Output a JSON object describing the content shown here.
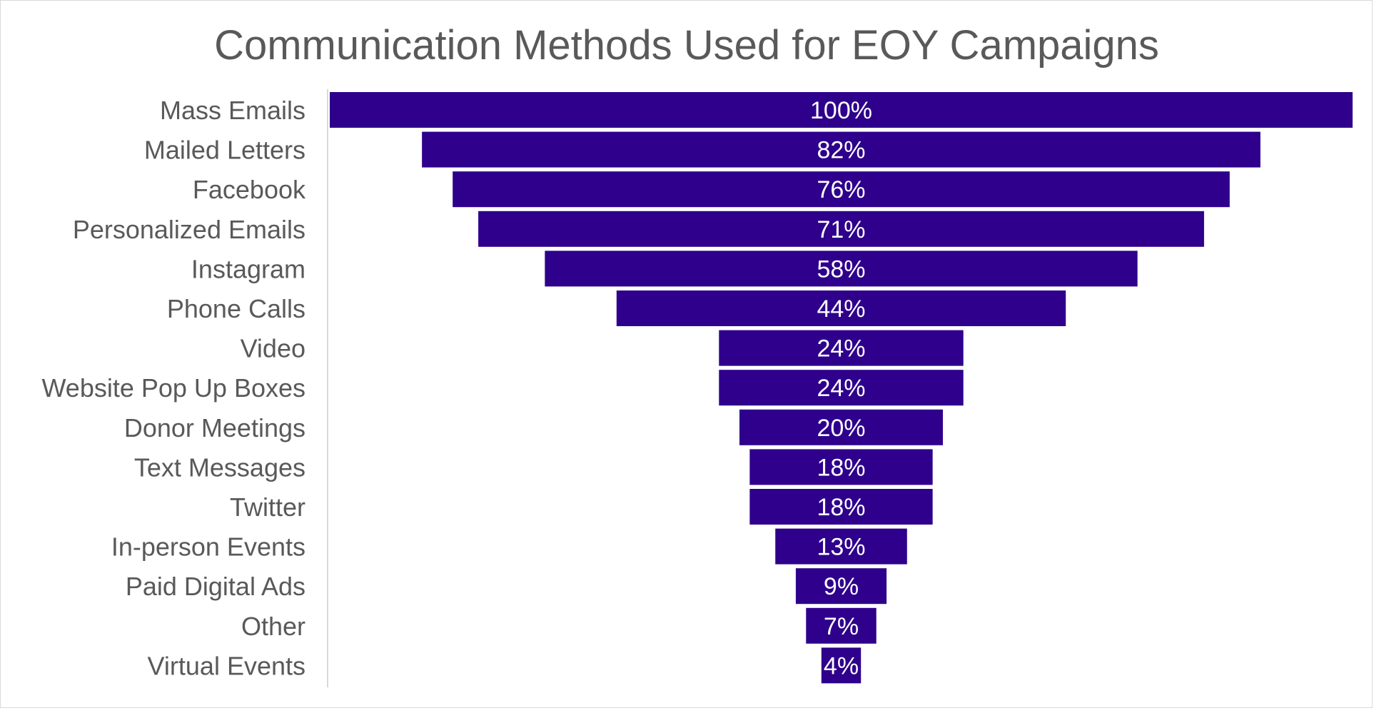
{
  "chart_data": {
    "type": "bar",
    "orientation": "horizontal-funnel",
    "title": "Communication Methods Used for EOY Campaigns",
    "xlabel": "",
    "ylabel": "",
    "xlim": [
      0,
      100
    ],
    "grid": false,
    "legend": "none",
    "categories": [
      "Mass Emails",
      "Mailed Letters",
      "Facebook",
      "Personalized Emails",
      "Instagram",
      "Phone Calls",
      "Video",
      "Website Pop Up Boxes",
      "Donor Meetings",
      "Text Messages",
      "Twitter",
      "In-person Events",
      "Paid Digital Ads",
      "Other",
      "Virtual Events"
    ],
    "values": [
      100,
      82,
      76,
      71,
      58,
      44,
      24,
      24,
      20,
      18,
      18,
      13,
      9,
      7,
      4
    ],
    "data_labels": [
      "100%",
      "82%",
      "76%",
      "71%",
      "58%",
      "44%",
      "24%",
      "24%",
      "20%",
      "18%",
      "18%",
      "13%",
      "9%",
      "7%",
      "4%"
    ],
    "colors": {
      "bar": "#2e008b",
      "bar_edge": "#ffffff",
      "axis": "#d9d9d9",
      "text": "#595959"
    }
  }
}
